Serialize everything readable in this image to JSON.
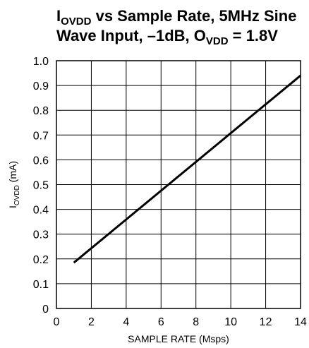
{
  "title": {
    "line1_main": "I",
    "line1_sub": "OVDD",
    "line1_rest": " vs Sample Rate, 5MHz Sine",
    "line2_main": "Wave Input, –1dB, O",
    "line2_sub": "VDD",
    "line2_rest": " = 1.8V"
  },
  "chart_data": {
    "type": "line",
    "title": "IOVDD vs Sample Rate, 5MHz Sine Wave Input, –1dB, OVDD = 1.8V",
    "xlabel": "SAMPLE RATE (Msps)",
    "ylabel": "IOVDD (mA)",
    "ylabel_parts": {
      "main": "I",
      "sub": "OVDD",
      "rest": " (mA)"
    },
    "xlim": [
      0,
      14
    ],
    "ylim": [
      0,
      1.0
    ],
    "xticks": [
      "0",
      "2",
      "4",
      "6",
      "8",
      "10",
      "12",
      "14"
    ],
    "xtick_values": [
      0,
      2,
      4,
      6,
      8,
      10,
      12,
      14
    ],
    "yticks": [
      "0",
      "0.1",
      "0.2",
      "0.3",
      "0.4",
      "0.5",
      "0.6",
      "0.7",
      "0.8",
      "0.9",
      "1.0"
    ],
    "ytick_values": [
      0,
      0.1,
      0.2,
      0.3,
      0.4,
      0.5,
      0.6,
      0.7,
      0.8,
      0.9,
      1.0
    ],
    "grid": true,
    "series": [
      {
        "x": [
          1,
          14
        ],
        "y": [
          0.185,
          0.94
        ]
      }
    ]
  }
}
